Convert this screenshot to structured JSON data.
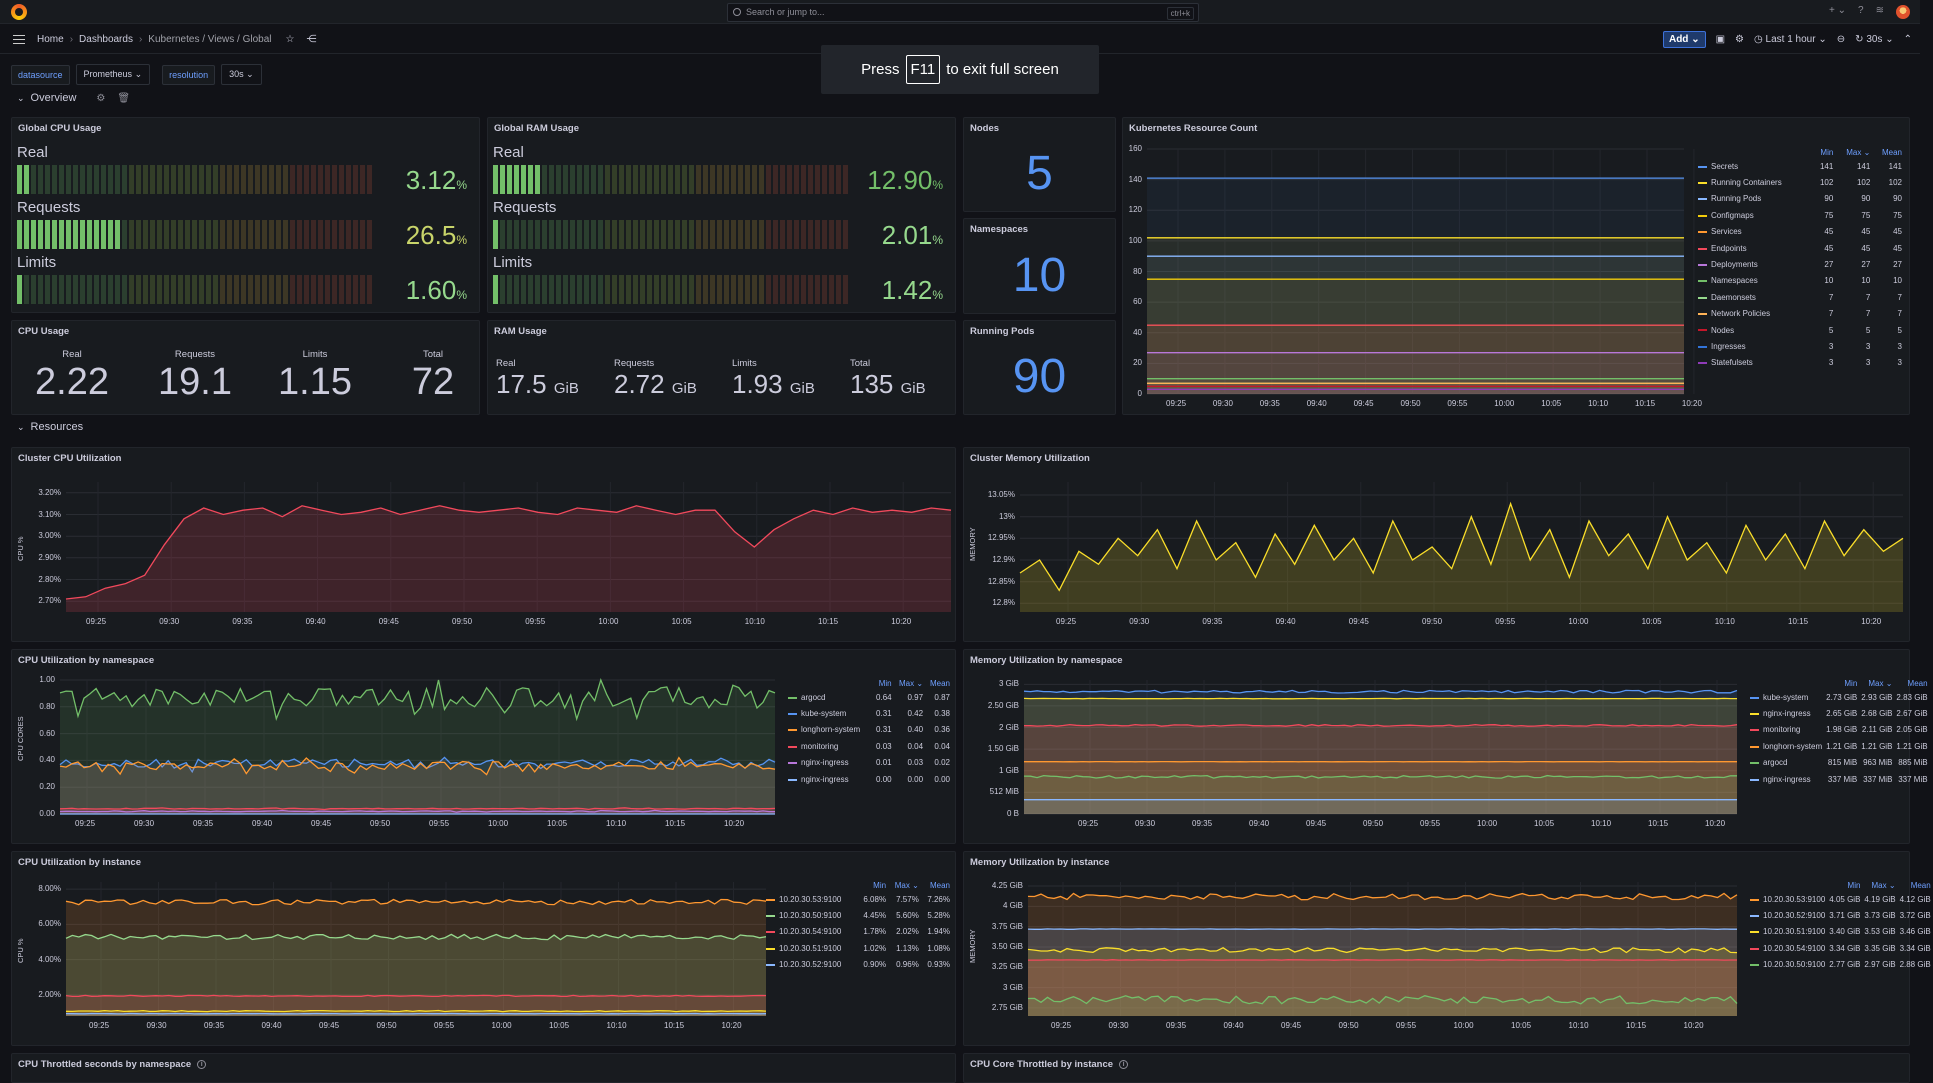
{
  "topbar": {
    "search_placeholder": "Search or jump to...",
    "search_kbd": "ctrl+k",
    "plus": "+ ⌄",
    "help": "?"
  },
  "breadcrumbs": [
    "Home",
    "Dashboards",
    "Kubernetes / Views / Global"
  ],
  "nav": {
    "add_label": "Add",
    "time_range": "Last 1 hour",
    "refresh": "30s"
  },
  "variables": [
    {
      "label": "datasource",
      "value": "Prometheus"
    },
    {
      "label": "resolution",
      "value": "30s"
    }
  ],
  "fullscreen_notice": {
    "pre": "Press",
    "key": "F11",
    "post": "to exit full screen"
  },
  "rows": {
    "overview": "Overview",
    "resources": "Resources"
  },
  "global_cpu": {
    "title": "Global CPU Usage",
    "items": [
      {
        "label": "Real",
        "value": "3.12",
        "unit": "%",
        "fraction": 0.0312
      },
      {
        "label": "Requests",
        "value": "26.5",
        "unit": "%",
        "fraction": 0.265
      },
      {
        "label": "Limits",
        "value": "1.60",
        "unit": "%",
        "fraction": 0.016
      }
    ]
  },
  "global_ram": {
    "title": "Global RAM Usage",
    "items": [
      {
        "label": "Real",
        "value": "12.90",
        "unit": "%",
        "fraction": 0.129
      },
      {
        "label": "Requests",
        "value": "2.01",
        "unit": "%",
        "fraction": 0.0201
      },
      {
        "label": "Limits",
        "value": "1.42",
        "unit": "%",
        "fraction": 0.0142
      }
    ]
  },
  "nodes": {
    "title": "Nodes",
    "value": "5"
  },
  "namespaces": {
    "title": "Namespaces",
    "value": "10"
  },
  "running_pods": {
    "title": "Running Pods",
    "value": "90"
  },
  "cpu_usage": {
    "title": "CPU Usage",
    "items": [
      {
        "label": "Real",
        "value": "2.22"
      },
      {
        "label": "Requests",
        "value": "19.1"
      },
      {
        "label": "Limits",
        "value": "1.15"
      },
      {
        "label": "Total",
        "value": "72"
      }
    ]
  },
  "ram_usage": {
    "title": "RAM Usage",
    "items": [
      {
        "label": "Real",
        "value": "17.5",
        "unit": "GiB"
      },
      {
        "label": "Requests",
        "value": "2.72",
        "unit": "GiB"
      },
      {
        "label": "Limits",
        "value": "1.93",
        "unit": "GiB"
      },
      {
        "label": "Total",
        "value": "135",
        "unit": "GiB"
      }
    ]
  },
  "x_ticks": [
    "09:25",
    "09:30",
    "09:35",
    "09:40",
    "09:45",
    "09:50",
    "09:55",
    "10:00",
    "10:05",
    "10:10",
    "10:15",
    "10:20"
  ],
  "legend_headers": {
    "min": "Min",
    "max": "Max ⌄",
    "mean": "Mean"
  },
  "colors": {
    "green": "#73bf69",
    "yellow": "#fade2a",
    "blue": "#5794f2",
    "orange": "#ff9830",
    "red": "#f2495c",
    "purple": "#b877d9",
    "lightblue": "#8ab8ff",
    "darkred": "#c4162a",
    "lightgreen": "#96d98d",
    "violet": "#8f3bb8"
  },
  "panels": {
    "cluster_cpu": "Cluster CPU Utilization",
    "cluster_mem": "Cluster Memory Utilization",
    "cpu_ns": "CPU Utilization by namespace",
    "mem_ns": "Memory Utilization by namespace",
    "cpu_inst": "CPU Utilization by instance",
    "mem_inst": "Memory Utilization by instance",
    "cpu_throttled_ns": "CPU Throttled seconds by namespace",
    "cpu_throttled_inst": "CPU Core Throttled by instance"
  },
  "chart_data": [
    {
      "id": "k8s_resource_count",
      "type": "line",
      "title": "Kubernetes Resource Count",
      "x": [
        "09:25",
        "09:30",
        "09:35",
        "09:40",
        "09:45",
        "09:50",
        "09:55",
        "10:00",
        "10:05",
        "10:10",
        "10:15",
        "10:20"
      ],
      "ylim": [
        0,
        160
      ],
      "yticks": [
        "0",
        "20",
        "40",
        "60",
        "80",
        "100",
        "120",
        "140",
        "160"
      ],
      "series": [
        {
          "name": "Secrets",
          "color": "#5794f2",
          "min": "141",
          "max": "141",
          "mean": "141",
          "level": 141
        },
        {
          "name": "Running Containers",
          "color": "#fade2a",
          "min": "102",
          "max": "102",
          "mean": "102",
          "level": 102
        },
        {
          "name": "Running Pods",
          "color": "#8ab8ff",
          "min": "90",
          "max": "90",
          "mean": "90",
          "level": 90
        },
        {
          "name": "Configmaps",
          "color": "#f2cc0c",
          "min": "75",
          "max": "75",
          "mean": "75",
          "level": 75
        },
        {
          "name": "Services",
          "color": "#ff9830",
          "min": "45",
          "max": "45",
          "mean": "45",
          "level": 45
        },
        {
          "name": "Endpoints",
          "color": "#f2495c",
          "min": "45",
          "max": "45",
          "mean": "45",
          "level": 45
        },
        {
          "name": "Deployments",
          "color": "#b877d9",
          "min": "27",
          "max": "27",
          "mean": "27",
          "level": 27
        },
        {
          "name": "Namespaces",
          "color": "#73bf69",
          "min": "10",
          "max": "10",
          "mean": "10",
          "level": 10
        },
        {
          "name": "Daemonsets",
          "color": "#96d98d",
          "min": "7",
          "max": "7",
          "mean": "7",
          "level": 7
        },
        {
          "name": "Network Policies",
          "color": "#ffb357",
          "min": "7",
          "max": "7",
          "mean": "7",
          "level": 7
        },
        {
          "name": "Nodes",
          "color": "#c4162a",
          "min": "5",
          "max": "5",
          "mean": "5",
          "level": 5
        },
        {
          "name": "Ingresses",
          "color": "#3274d9",
          "min": "3",
          "max": "3",
          "mean": "3",
          "level": 3
        },
        {
          "name": "Statefulsets",
          "color": "#8f3bb8",
          "min": "3",
          "max": "3",
          "mean": "3",
          "level": 3
        }
      ]
    },
    {
      "id": "cluster_cpu",
      "type": "area",
      "title": "Cluster CPU Utilization",
      "ylabel": "CPU %",
      "ylim": [
        2.65,
        3.25
      ],
      "yticks": [
        "2.70%",
        "2.80%",
        "2.90%",
        "3.00%",
        "3.10%",
        "3.20%"
      ],
      "series": [
        {
          "name": "",
          "color": "#f2495c",
          "values": [
            2.71,
            2.72,
            2.76,
            2.78,
            2.82,
            2.96,
            3.08,
            3.13,
            3.1,
            3.12,
            3.13,
            3.09,
            3.14,
            3.12,
            3.1,
            3.11,
            3.13,
            3.1,
            3.12,
            3.14,
            3.12,
            3.11,
            3.12,
            3.13,
            3.11,
            3.1,
            3.13,
            3.12,
            3.11,
            3.14,
            3.12,
            3.1,
            3.12,
            3.12,
            3.02,
            2.95,
            3.03,
            3.08,
            3.12,
            3.1,
            3.13,
            3.11,
            3.12,
            3.11,
            3.13,
            3.12
          ]
        }
      ]
    },
    {
      "id": "cluster_mem",
      "type": "area",
      "title": "Cluster Memory Utilization",
      "ylabel": "MEMORY",
      "ylim": [
        12.78,
        13.08
      ],
      "yticks": [
        "12.8%",
        "12.85%",
        "12.9%",
        "12.95%",
        "13%",
        "13.05%"
      ],
      "series": [
        {
          "name": "",
          "color": "#fade2a",
          "values": [
            12.87,
            12.9,
            12.83,
            12.92,
            12.89,
            12.95,
            12.91,
            12.97,
            12.88,
            12.99,
            12.9,
            12.94,
            12.86,
            12.96,
            12.89,
            12.98,
            12.9,
            12.95,
            12.87,
            12.99,
            12.9,
            12.93,
            12.88,
            13.0,
            12.89,
            13.03,
            12.9,
            12.97,
            12.86,
            12.99,
            12.91,
            12.96,
            12.88,
            13.0,
            12.9,
            12.94,
            12.87,
            12.98,
            12.9,
            12.96,
            12.88,
            12.99,
            12.91,
            12.97,
            12.92,
            12.95
          ]
        }
      ]
    },
    {
      "id": "cpu_ns",
      "type": "area",
      "title": "CPU Utilization by namespace",
      "ylabel": "CPU CORES",
      "ylim": [
        0,
        1.0
      ],
      "yticks": [
        "0.00",
        "0.20",
        "0.40",
        "0.60",
        "0.80",
        "1.00"
      ],
      "series": [
        {
          "name": "argocd",
          "color": "#73bf69",
          "min": "0.64",
          "max": "0.97",
          "mean": "0.87",
          "level": 0.87,
          "jitter": 0.08
        },
        {
          "name": "kube-system",
          "color": "#5794f2",
          "min": "0.31",
          "max": "0.42",
          "mean": "0.38",
          "level": 0.38,
          "jitter": 0.03
        },
        {
          "name": "longhorn-system",
          "color": "#ff9830",
          "min": "0.31",
          "max": "0.40",
          "mean": "0.36",
          "level": 0.36,
          "jitter": 0.03
        },
        {
          "name": "monitoring",
          "color": "#f2495c",
          "min": "0.03",
          "max": "0.04",
          "mean": "0.04",
          "level": 0.04,
          "jitter": 0.003
        },
        {
          "name": "nginx-ingress",
          "color": "#b877d9",
          "min": "0.01",
          "max": "0.03",
          "mean": "0.02",
          "level": 0.02,
          "jitter": 0.003
        },
        {
          "name": "nginx-ingress",
          "color": "#8ab8ff",
          "min": "0.00",
          "max": "0.00",
          "mean": "0.00",
          "level": 0.0,
          "jitter": 0
        }
      ]
    },
    {
      "id": "mem_ns",
      "type": "area",
      "title": "Memory Utilization by namespace",
      "ylabel": "",
      "ylim": [
        0,
        3.1
      ],
      "yticks": [
        "0 B",
        "512 MiB",
        "1 GiB",
        "1.50 GiB",
        "2 GiB",
        "2.50 GiB",
        "3 GiB"
      ],
      "series": [
        {
          "name": "kube-system",
          "color": "#5794f2",
          "min": "2.73 GiB",
          "max": "2.93 GiB",
          "mean": "2.83 GiB",
          "level": 2.83,
          "jitter": 0.03
        },
        {
          "name": "nginx-ingress",
          "color": "#fade2a",
          "min": "2.65 GiB",
          "max": "2.68 GiB",
          "mean": "2.67 GiB",
          "level": 2.67,
          "jitter": 0.005
        },
        {
          "name": "monitoring",
          "color": "#f2495c",
          "min": "1.98 GiB",
          "max": "2.11 GiB",
          "mean": "2.05 GiB",
          "level": 2.05,
          "jitter": 0.02
        },
        {
          "name": "longhorn-system",
          "color": "#ff9830",
          "min": "1.21 GiB",
          "max": "1.21 GiB",
          "mean": "1.21 GiB",
          "level": 1.21,
          "jitter": 0.003
        },
        {
          "name": "argocd",
          "color": "#73bf69",
          "min": "815 MiB",
          "max": "963 MiB",
          "mean": "885 MiB",
          "level": 0.86,
          "jitter": 0.03
        },
        {
          "name": "nginx-ingress",
          "color": "#8ab8ff",
          "min": "337 MiB",
          "max": "337 MiB",
          "mean": "337 MiB",
          "level": 0.33,
          "jitter": 0
        }
      ]
    },
    {
      "id": "cpu_inst",
      "type": "area",
      "title": "CPU Utilization by instance",
      "ylabel": "CPU %",
      "ylim": [
        0.8,
        8.4
      ],
      "yticks": [
        "2.00%",
        "4.00%",
        "6.00%",
        "8.00%"
      ],
      "series": [
        {
          "name": "10.20.30.53:9100",
          "color": "#ff9830",
          "min": "6.08%",
          "max": "7.57%",
          "mean": "7.26%",
          "level": 7.26,
          "jitter": 0.15
        },
        {
          "name": "10.20.30.50:9100",
          "color": "#96d98d",
          "min": "4.45%",
          "max": "5.60%",
          "mean": "5.28%",
          "level": 5.28,
          "jitter": 0.15
        },
        {
          "name": "10.20.30.54:9100",
          "color": "#f2495c",
          "min": "1.78%",
          "max": "2.02%",
          "mean": "1.94%",
          "level": 1.94,
          "jitter": 0.03
        },
        {
          "name": "10.20.30.51:9100",
          "color": "#fade2a",
          "min": "1.02%",
          "max": "1.13%",
          "mean": "1.08%",
          "level": 1.08,
          "jitter": 0.03
        },
        {
          "name": "10.20.30.52:9100",
          "color": "#8ab8ff",
          "min": "0.90%",
          "max": "0.96%",
          "mean": "0.93%",
          "level": 0.93,
          "jitter": 0.01
        }
      ]
    },
    {
      "id": "mem_inst",
      "type": "area",
      "title": "Memory Utilization by instance",
      "ylabel": "MEMORY",
      "ylim": [
        2.65,
        4.3
      ],
      "yticks": [
        "2.75 GiB",
        "3 GiB",
        "3.25 GiB",
        "3.50 GiB",
        "3.75 GiB",
        "4 GiB",
        "4.25 GiB"
      ],
      "series": [
        {
          "name": "10.20.30.53:9100",
          "color": "#ff9830",
          "min": "4.05 GiB",
          "max": "4.19 GiB",
          "mean": "4.12 GiB",
          "level": 4.12,
          "jitter": 0.04
        },
        {
          "name": "10.20.30.52:9100",
          "color": "#8ab8ff",
          "min": "3.71 GiB",
          "max": "3.73 GiB",
          "mean": "3.72 GiB",
          "level": 3.72,
          "jitter": 0.003
        },
        {
          "name": "10.20.30.51:9100",
          "color": "#fade2a",
          "min": "3.40 GiB",
          "max": "3.53 GiB",
          "mean": "3.46 GiB",
          "level": 3.46,
          "jitter": 0.03
        },
        {
          "name": "10.20.30.54:9100",
          "color": "#f2495c",
          "min": "3.34 GiB",
          "max": "3.35 GiB",
          "mean": "3.34 GiB",
          "level": 3.34,
          "jitter": 0.003
        },
        {
          "name": "10.20.30.50:9100",
          "color": "#73bf69",
          "min": "2.77 GiB",
          "max": "2.97 GiB",
          "mean": "2.88 GiB",
          "level": 2.85,
          "jitter": 0.05
        }
      ]
    }
  ]
}
